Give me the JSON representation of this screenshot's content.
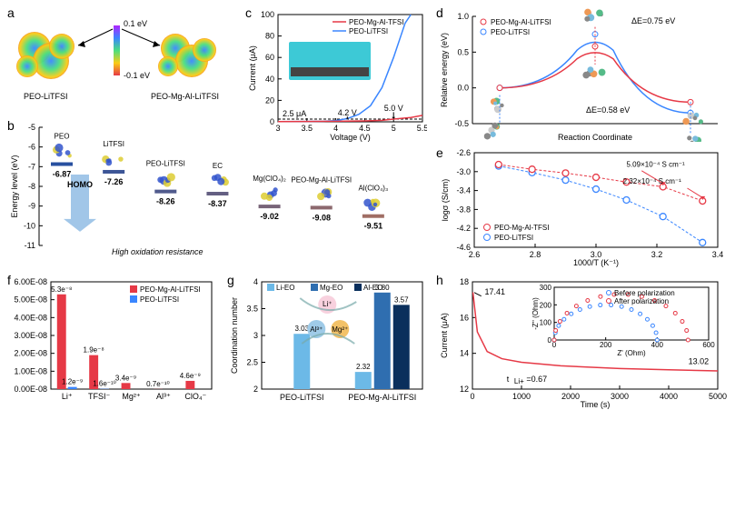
{
  "colors": {
    "red": "#e63946",
    "blue": "#3a86ff",
    "lightblue": "#6cb9e7",
    "medblue": "#2f6eb0",
    "darkblue": "#0a2f5c",
    "cyan": "#40d9e0",
    "teal": "#52b4bf"
  },
  "panel_a": {
    "label": "a",
    "left_label": "PEO-LiTFSI",
    "right_label": "PEO-Mg-Al-LiTFSI",
    "scale_top": "0.1 eV",
    "scale_bottom": "-0.1 eV"
  },
  "panel_b": {
    "label": "b",
    "y_axis": "Energy level (eV)",
    "annotation": "HOMO",
    "annotation2": "High oxidation resistance",
    "ymin": -11,
    "ymax": -5,
    "ytick": 1,
    "species": [
      {
        "name": "PEO",
        "value": -6.87
      },
      {
        "name": "LiTFSI",
        "value": -7.26
      },
      {
        "name": "PEO-LiTFSI",
        "value": -8.26
      },
      {
        "name": "EC",
        "value": -8.37
      },
      {
        "name": "Mg(ClO₄)₂",
        "value": -9.02
      },
      {
        "name": "PEO-Mg-Al-LiTFSI",
        "value": -9.08
      },
      {
        "name": "Al(ClO₄)₃",
        "value": -9.51
      }
    ]
  },
  "panel_c": {
    "label": "c",
    "x_axis": "Voltage (V)",
    "y_axis": "Current (μA)",
    "xmin": 3,
    "xmax": 5.5,
    "xtick": 0.5,
    "ymin": 0,
    "ymax": 100,
    "ytick": 20,
    "hline_label": "2.5 μA",
    "hline_y": 2.5,
    "ann1": "4.2 V",
    "ann2": "5.0 V",
    "inset_bg": "#3dc9d6",
    "legend": [
      {
        "label": "PEO-Mg-Al-TFSI",
        "color": "#e63946"
      },
      {
        "label": "PEO-LiTFSI",
        "color": "#3a86ff"
      }
    ],
    "blue_curve": [
      [
        3,
        0.2
      ],
      [
        3.5,
        0.3
      ],
      [
        3.8,
        0.5
      ],
      [
        4.0,
        1.2
      ],
      [
        4.2,
        3
      ],
      [
        4.4,
        7
      ],
      [
        4.6,
        15
      ],
      [
        4.8,
        32
      ],
      [
        5.0,
        60
      ],
      [
        5.2,
        92
      ],
      [
        5.3,
        100
      ]
    ],
    "red_curve": [
      [
        3,
        0.2
      ],
      [
        3.5,
        0.3
      ],
      [
        4.0,
        0.5
      ],
      [
        4.5,
        0.9
      ],
      [
        4.8,
        1.4
      ],
      [
        5.0,
        2.5
      ],
      [
        5.3,
        4
      ],
      [
        5.5,
        6
      ]
    ]
  },
  "panel_d": {
    "label": "d",
    "x_axis": "Reaction Coordinate",
    "y_axis": "Relative energy (eV)",
    "ymin": -0.5,
    "ymax": 1,
    "ytick": 0.5,
    "legend": [
      {
        "label": "PEO-Mg-Al-LiTFSI",
        "color": "#e63946"
      },
      {
        "label": "PEO-LiTFSI",
        "color": "#3a86ff"
      }
    ],
    "ann_blue": "ΔE=0.75 eV",
    "ann_red": "ΔE=0.58 eV",
    "blue_peak": 0.75,
    "red_peak": 0.58,
    "left_y": 0.0,
    "right_y_blue": -0.35,
    "right_y_red": -0.2
  },
  "panel_e": {
    "label": "e",
    "x_axis": "1000/T (K⁻¹)",
    "y_axis": "logσ (S/cm)",
    "xmin": 2.6,
    "xmax": 3.4,
    "xtick": 0.2,
    "ymin": -4.6,
    "ymax": -2.6,
    "ytick": 0.4,
    "ann1": "5.09×10⁻⁴ S cm⁻¹",
    "ann2": "2.32×10⁻⁴ S cm⁻¹",
    "legend": [
      {
        "label": "PEO-Mg-Al-TFSI",
        "color": "#e63946"
      },
      {
        "label": "PEO-LiTFSI",
        "color": "#3a86ff"
      }
    ],
    "red_pts": [
      [
        2.68,
        -2.85
      ],
      [
        2.79,
        -2.95
      ],
      [
        2.9,
        -3.03
      ],
      [
        3.0,
        -3.12
      ],
      [
        3.1,
        -3.22
      ],
      [
        3.22,
        -3.32
      ],
      [
        3.35,
        -3.62
      ]
    ],
    "blue_pts": [
      [
        2.68,
        -2.88
      ],
      [
        2.79,
        -3.02
      ],
      [
        2.9,
        -3.18
      ],
      [
        3.0,
        -3.37
      ],
      [
        3.1,
        -3.6
      ],
      [
        3.22,
        -3.95
      ],
      [
        3.35,
        -4.5
      ]
    ]
  },
  "panel_f": {
    "label": "f",
    "ymax": 6e-08,
    "ytick": 1e-08,
    "categories": [
      "Li⁺",
      "TFSI⁻",
      "Mg²⁺",
      "Al³⁺",
      "ClO₄⁻"
    ],
    "legend": [
      {
        "label": "PEO-Mg-Al-LiTFSI",
        "color": "#e63946"
      },
      {
        "label": "PEO-LiTFSI",
        "color": "#3a86ff"
      }
    ],
    "red": [
      5.3e-08,
      1.9e-08,
      3.4e-09,
      7e-11,
      4.6e-09
    ],
    "blue": [
      1.2e-09,
      1.6e-10,
      0,
      0,
      0
    ],
    "red_labels": [
      "5.3e⁻⁸",
      "1.9e⁻⁸",
      "3.4e⁻⁹",
      "0.7e⁻¹⁰",
      "4.6e⁻⁹"
    ],
    "blue_labels": [
      "1.2e⁻⁹",
      "1.6e⁻¹⁰",
      "",
      "",
      ""
    ]
  },
  "panel_g": {
    "label": "g",
    "y_axis": "Coordination number",
    "ymin": 2,
    "ymax": 4,
    "ytick": 0.5,
    "legend": [
      {
        "label": "Li-EO",
        "color": "#6cb9e7"
      },
      {
        "label": "Mg-EO",
        "color": "#2f6eb0"
      },
      {
        "label": "Al-EO",
        "color": "#0a2f5c"
      }
    ],
    "groups": [
      "PEO-LiTFSI",
      "PEO-Mg-Al-LiTFSI"
    ],
    "bars": [
      {
        "group": 0,
        "series": 0,
        "value": 3.03,
        "label": "3.03"
      },
      {
        "group": 1,
        "series": 0,
        "value": 2.32,
        "label": "2.32"
      },
      {
        "group": 1,
        "series": 1,
        "value": 3.8,
        "label": "3.80"
      },
      {
        "group": 1,
        "series": 2,
        "value": 3.57,
        "label": "3.57"
      }
    ],
    "ion_labels": [
      "Li⁺",
      "Al³⁺",
      "Mg²⁺"
    ]
  },
  "panel_h": {
    "label": "h",
    "x_axis": "Time (s)",
    "y_axis": "Current (μA)",
    "xmin": 0,
    "xmax": 5000,
    "xtick": 1000,
    "ymin": 12,
    "ymax": 18,
    "ytick": 2,
    "ann1": "17.41",
    "ann2": "13.02",
    "ann3": "t_Li+=0.67",
    "inset": {
      "x_axis": "Z' (Ohm)",
      "y_axis": "-Z'' (Ohm)",
      "xmin": 0,
      "xmax": 600,
      "xtick": 200,
      "ymin": 0,
      "ymax": 300,
      "ytick": 100,
      "legend": [
        {
          "label": "Before polarization",
          "color": "#3a86ff"
        },
        {
          "label": "After polarization",
          "color": "#e63946"
        }
      ]
    },
    "curve": [
      [
        10,
        17.41
      ],
      [
        100,
        15.2
      ],
      [
        300,
        14.1
      ],
      [
        600,
        13.7
      ],
      [
        1000,
        13.5
      ],
      [
        1800,
        13.3
      ],
      [
        3000,
        13.15
      ],
      [
        4000,
        13.08
      ],
      [
        5000,
        13.02
      ]
    ]
  }
}
